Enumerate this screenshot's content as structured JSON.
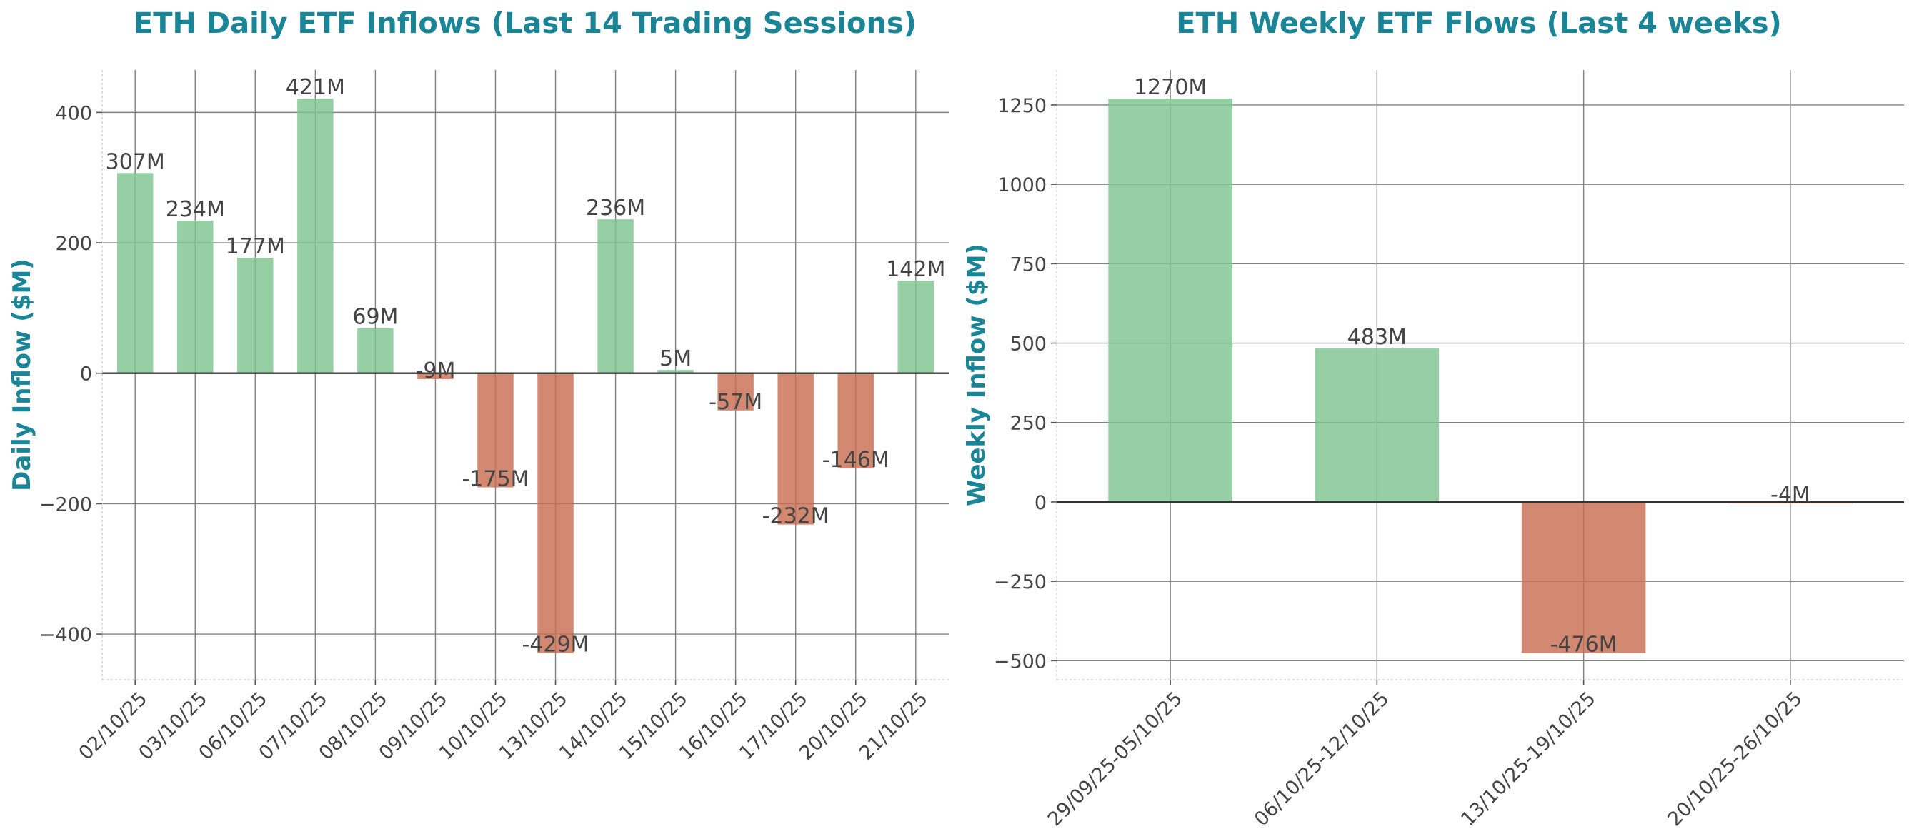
{
  "colors": {
    "positive": "#7fc58f",
    "negative": "#c86e52",
    "title": "#1a8597",
    "text": "#444444"
  },
  "chart_data": [
    {
      "type": "bar",
      "title": "ETH Daily ETF Inflows (Last 14 Trading Sessions)",
      "xlabel": "",
      "ylabel": "Daily Inflow ($M)",
      "categories": [
        "02/10/25",
        "03/10/25",
        "06/10/25",
        "07/10/25",
        "08/10/25",
        "09/10/25",
        "10/10/25",
        "13/10/25",
        "14/10/25",
        "15/10/25",
        "16/10/25",
        "17/10/25",
        "20/10/25",
        "21/10/25"
      ],
      "values": [
        307,
        234,
        177,
        421,
        69,
        -9,
        -175,
        -429,
        236,
        5,
        -57,
        -232,
        -146,
        142
      ],
      "data_labels": [
        "307M",
        "234M",
        "177M",
        "421M",
        "69M",
        "-9M",
        "-175M",
        "-429M",
        "236M",
        "5M",
        "-57M",
        "-232M",
        "-146M",
        "142M"
      ],
      "ylim": [
        -470,
        465
      ],
      "yticks": [
        -400,
        -200,
        0,
        200,
        400
      ],
      "ytick_labels": [
        "−400",
        "−200",
        "0",
        "200",
        "400"
      ],
      "grid": true
    },
    {
      "type": "bar",
      "title": "ETH Weekly ETF Flows (Last 4 weeks)",
      "xlabel": "",
      "ylabel": "Weekly Inflow ($M)",
      "categories": [
        "29/09/25-05/10/25",
        "06/10/25-12/10/25",
        "13/10/25-19/10/25",
        "20/10/25-26/10/25"
      ],
      "values": [
        1270,
        483,
        -476,
        -4
      ],
      "data_labels": [
        "1270M",
        "483M",
        "-476M",
        "-4M"
      ],
      "ylim": [
        -560,
        1360
      ],
      "yticks": [
        -500,
        -250,
        0,
        250,
        500,
        750,
        1000,
        1250
      ],
      "ytick_labels": [
        "−500",
        "−250",
        "0",
        "250",
        "500",
        "750",
        "1000",
        "1250"
      ],
      "grid": true
    }
  ]
}
